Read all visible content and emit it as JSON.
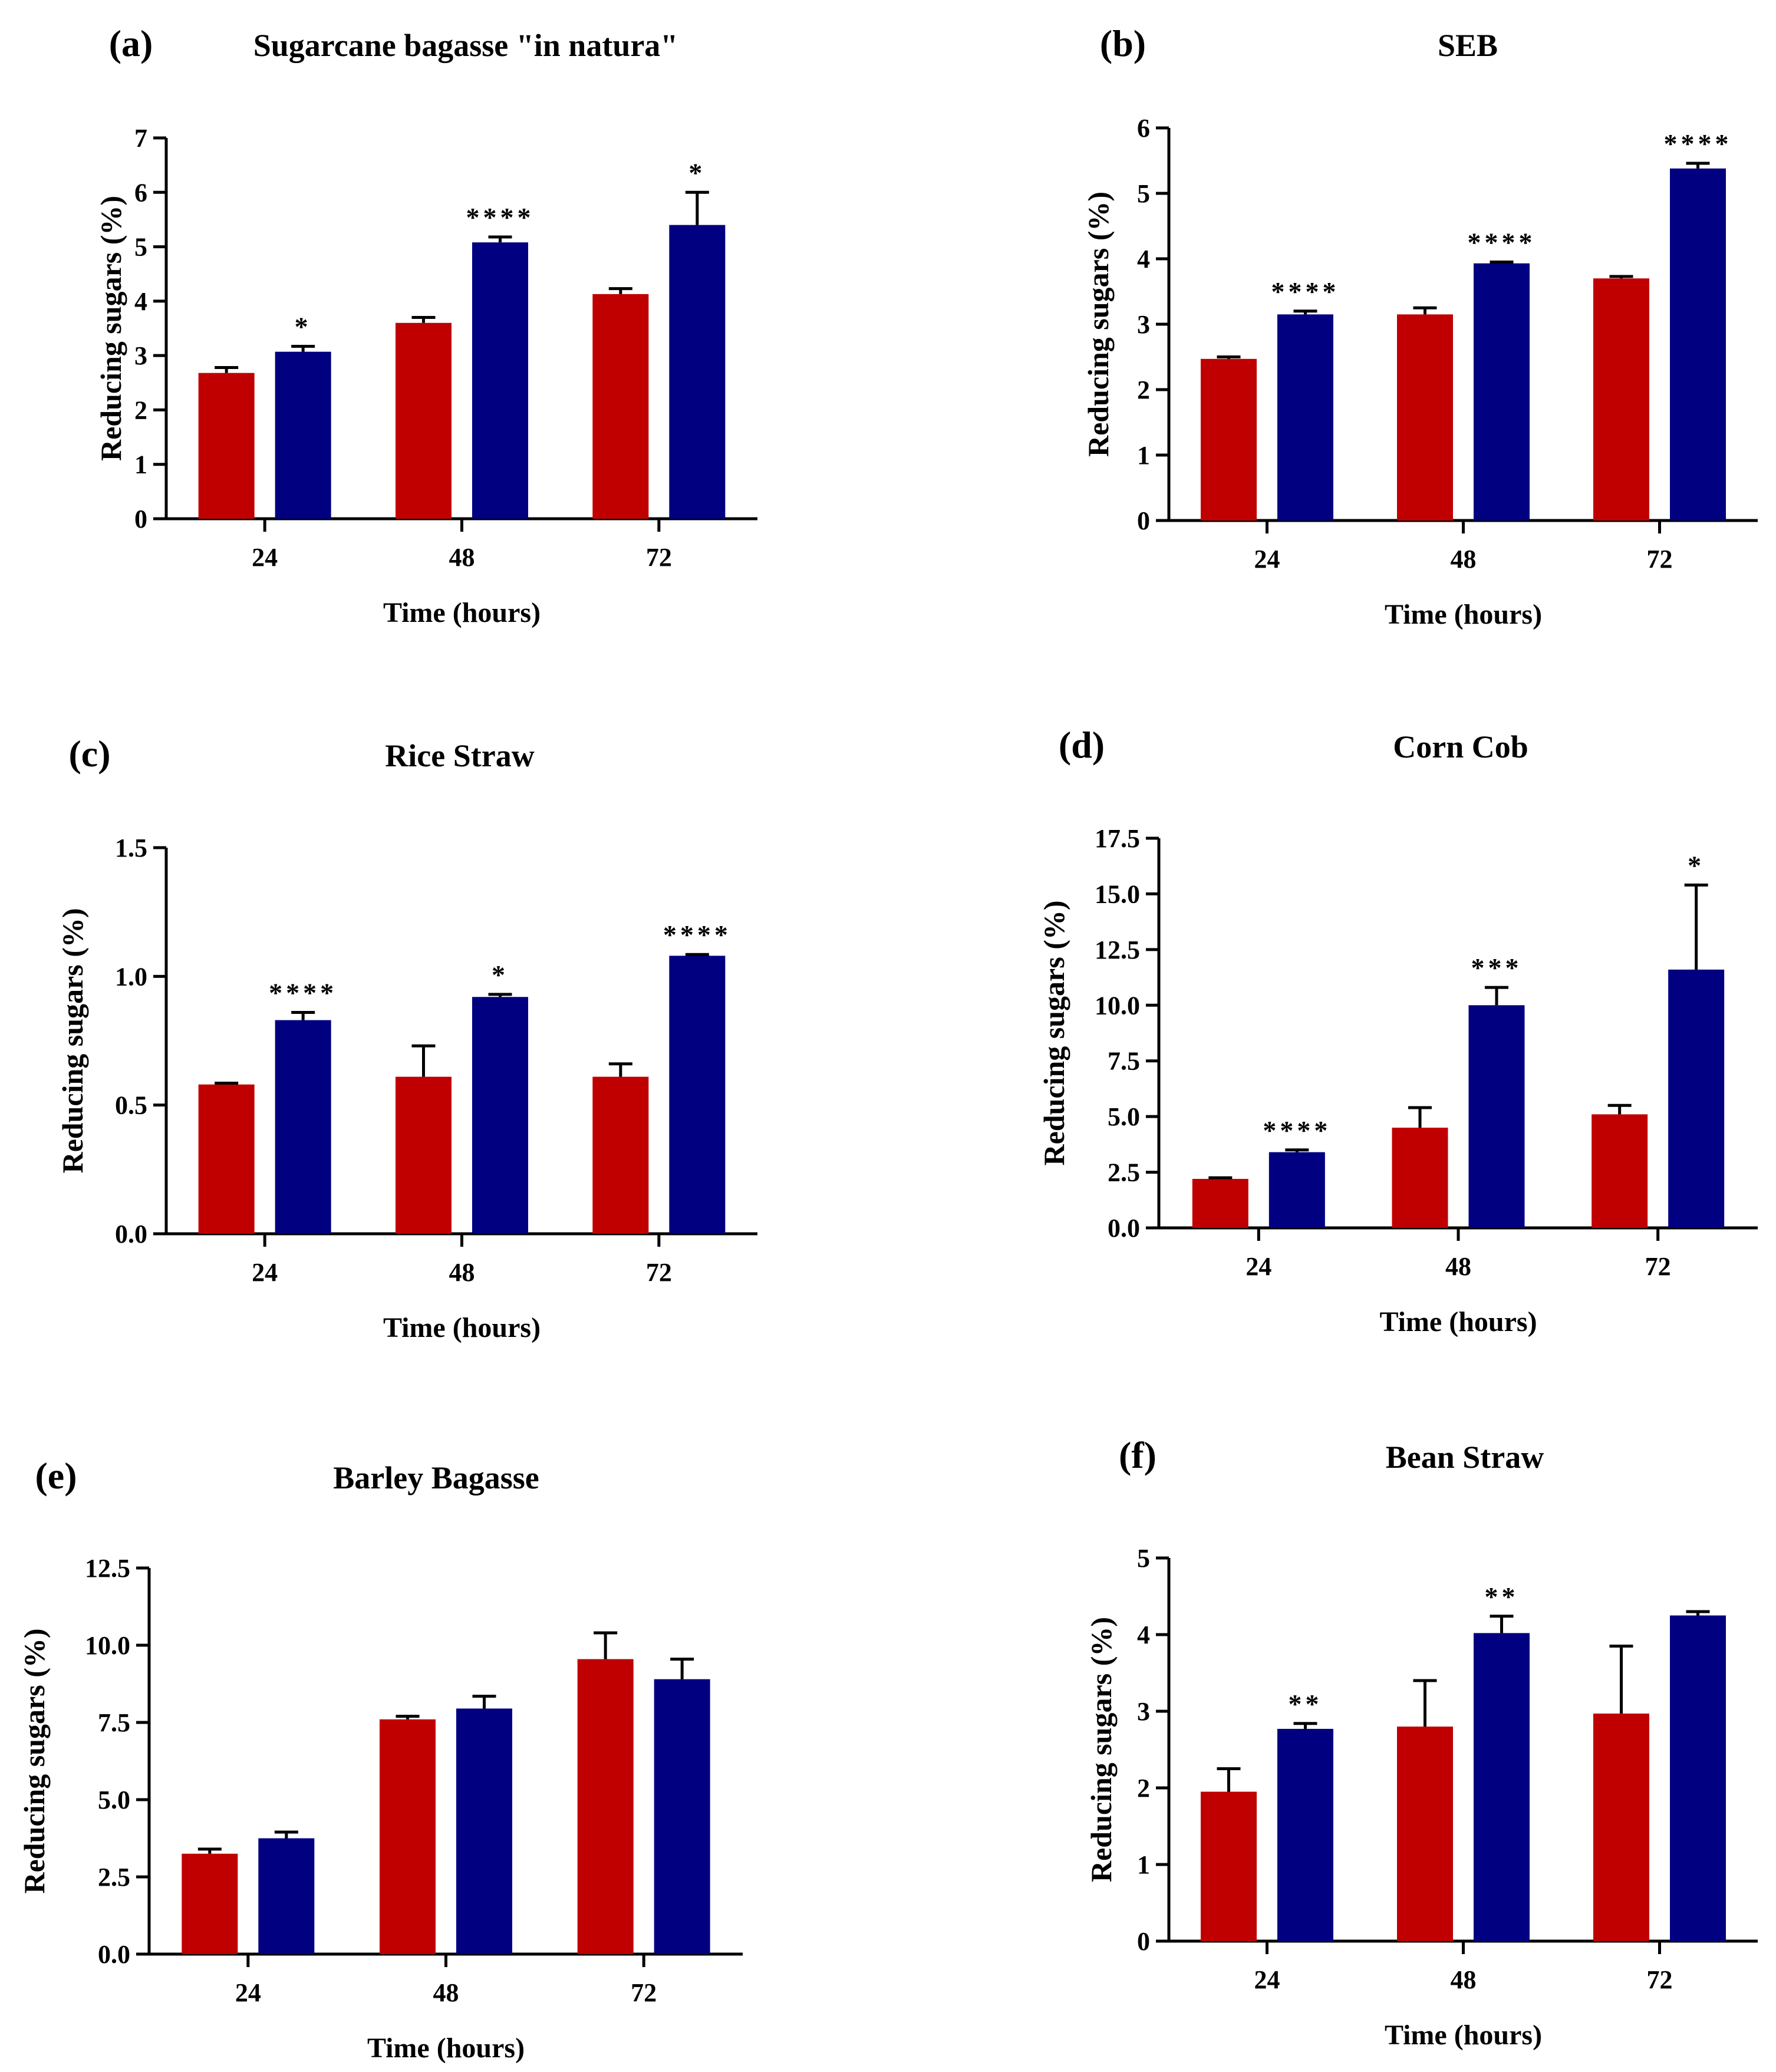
{
  "colors": {
    "red": "#C00000",
    "blue": "#000080",
    "axis": "#000000"
  },
  "chart_data": [
    {
      "type": "bar",
      "panel_label": "(a)",
      "title": "Sugarcane bagasse \"in natura\"",
      "xlabel": "Time (hours)",
      "ylabel": "Reducing sugars (%)",
      "categories": [
        "24",
        "48",
        "72"
      ],
      "ylim": [
        0,
        7
      ],
      "yticks": [
        0,
        1,
        2,
        3,
        4,
        5,
        6,
        7
      ],
      "ytick_labels": [
        "0",
        "1",
        "2",
        "3",
        "4",
        "5",
        "6",
        "7"
      ],
      "series": [
        {
          "name": "red",
          "values": [
            2.68,
            3.6,
            4.13
          ],
          "errors": [
            0.1,
            0.1,
            0.1
          ]
        },
        {
          "name": "blue",
          "values": [
            3.07,
            5.08,
            5.4
          ],
          "errors": [
            0.1,
            0.1,
            0.6
          ]
        }
      ],
      "significance": [
        "*",
        "****",
        "*"
      ]
    },
    {
      "type": "bar",
      "panel_label": "(b)",
      "title": "SEB",
      "xlabel": "Time (hours)",
      "ylabel": "Reducing sugars (%)",
      "categories": [
        "24",
        "48",
        "72"
      ],
      "ylim": [
        0,
        6
      ],
      "yticks": [
        0,
        1,
        2,
        3,
        4,
        5,
        6
      ],
      "ytick_labels": [
        "0",
        "1",
        "2",
        "3",
        "4",
        "5",
        "6"
      ],
      "series": [
        {
          "name": "red",
          "values": [
            2.47,
            3.15,
            3.7
          ],
          "errors": [
            0.03,
            0.1,
            0.03
          ]
        },
        {
          "name": "blue",
          "values": [
            3.15,
            3.93,
            5.38
          ],
          "errors": [
            0.05,
            0.02,
            0.08
          ]
        }
      ],
      "significance": [
        "****",
        "****",
        "****"
      ]
    },
    {
      "type": "bar",
      "panel_label": "(c)",
      "title": "Rice Straw",
      "xlabel": "Time (hours)",
      "ylabel": "Reducing sugars (%)",
      "categories": [
        "24",
        "48",
        "72"
      ],
      "ylim": [
        0,
        1.5
      ],
      "yticks": [
        0,
        0.5,
        1.0,
        1.5
      ],
      "ytick_labels": [
        "0.0",
        "0.5",
        "1.0",
        "1.5"
      ],
      "series": [
        {
          "name": "red",
          "values": [
            0.58,
            0.61,
            0.61
          ],
          "errors": [
            0.005,
            0.12,
            0.05
          ]
        },
        {
          "name": "blue",
          "values": [
            0.83,
            0.92,
            1.08
          ],
          "errors": [
            0.03,
            0.01,
            0.005
          ]
        }
      ],
      "significance": [
        "****",
        "*",
        "****"
      ]
    },
    {
      "type": "bar",
      "panel_label": "(d)",
      "title": "Corn Cob",
      "xlabel": "Time (hours)",
      "ylabel": "Reducing sugars (%)",
      "categories": [
        "24",
        "48",
        "72"
      ],
      "ylim": [
        0,
        17.5
      ],
      "yticks": [
        0,
        2.5,
        5,
        7.5,
        10,
        12.5,
        15,
        17.5
      ],
      "ytick_labels": [
        "0.0",
        "2.5",
        "5.0",
        "7.5",
        "10.0",
        "12.5",
        "15.0",
        "17.5"
      ],
      "series": [
        {
          "name": "red",
          "values": [
            2.2,
            4.5,
            5.1
          ],
          "errors": [
            0.05,
            0.9,
            0.4
          ]
        },
        {
          "name": "blue",
          "values": [
            3.4,
            10.0,
            11.6
          ],
          "errors": [
            0.1,
            0.8,
            3.8
          ]
        }
      ],
      "significance": [
        "****",
        "***",
        "*"
      ]
    },
    {
      "type": "bar",
      "panel_label": "(e)",
      "title": "Barley Bagasse",
      "xlabel": "Time (hours)",
      "ylabel": "Reducing sugars (%)",
      "categories": [
        "24",
        "48",
        "72"
      ],
      "ylim": [
        0,
        12.5
      ],
      "yticks": [
        0,
        2.5,
        5,
        7.5,
        10,
        12.5
      ],
      "ytick_labels": [
        "0.0",
        "2.5",
        "5.0",
        "7.5",
        "10.0",
        "12.5"
      ],
      "series": [
        {
          "name": "red",
          "values": [
            3.25,
            7.6,
            9.55
          ],
          "errors": [
            0.15,
            0.1,
            0.85
          ]
        },
        {
          "name": "blue",
          "values": [
            3.75,
            7.95,
            8.9
          ],
          "errors": [
            0.2,
            0.4,
            0.65
          ]
        }
      ],
      "significance": [
        "",
        "",
        ""
      ]
    },
    {
      "type": "bar",
      "panel_label": "(f)",
      "title": "Bean Straw",
      "xlabel": "Time (hours)",
      "ylabel": "Reducing sugars (%)",
      "categories": [
        "24",
        "48",
        "72"
      ],
      "ylim": [
        0,
        5
      ],
      "yticks": [
        0,
        1,
        2,
        3,
        4,
        5
      ],
      "ytick_labels": [
        "0",
        "1",
        "2",
        "3",
        "4",
        "5"
      ],
      "series": [
        {
          "name": "red",
          "values": [
            1.95,
            2.8,
            2.97
          ],
          "errors": [
            0.3,
            0.6,
            0.88
          ]
        },
        {
          "name": "blue",
          "values": [
            2.77,
            4.02,
            4.25
          ],
          "errors": [
            0.07,
            0.22,
            0.05
          ]
        }
      ],
      "significance": [
        "**",
        "**",
        ""
      ]
    }
  ]
}
